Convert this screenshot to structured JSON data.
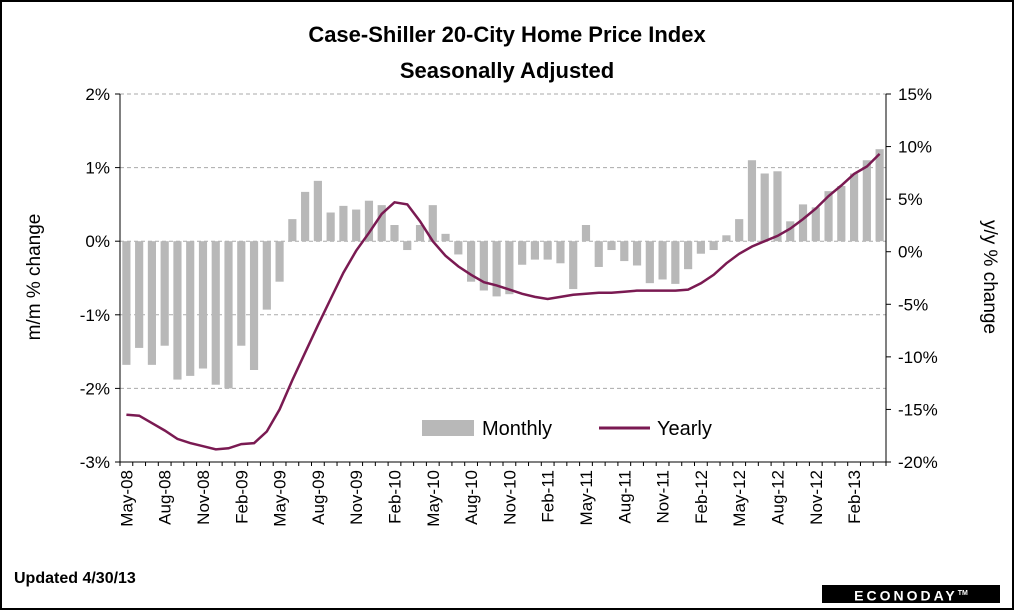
{
  "chart_data": {
    "type": "bar+line",
    "title": "Case-Shiller 20-City Home Price Index",
    "subtitle": "Seasonally Adjusted",
    "ylabel_left": "m/m % change",
    "ylabel_right": "y/y % change",
    "ylim_left": [
      -3,
      2
    ],
    "ylim_right": [
      -20,
      15
    ],
    "yticks_left": [
      "2%",
      "1%",
      "0%",
      "-1%",
      "-2%",
      "-3%"
    ],
    "yticks_right": [
      "15%",
      "10%",
      "5%",
      "0%",
      "-5%",
      "-10%",
      "-15%",
      "-20%"
    ],
    "grid": "horizontal dashed",
    "legend_position": "bottom-center",
    "x_tick_labels": [
      "May-08",
      "Aug-08",
      "Nov-08",
      "Feb-09",
      "May-09",
      "Aug-09",
      "Nov-09",
      "Feb-10",
      "May-10",
      "Aug-10",
      "Nov-10",
      "Feb-11",
      "May-11",
      "Aug-11",
      "Nov-11",
      "Feb-12",
      "May-12",
      "Aug-12",
      "Nov-12",
      "Feb-13"
    ],
    "x_tick_every": 3,
    "series": [
      {
        "name": "Monthly",
        "kind": "bar",
        "color": "#b8b8b8",
        "values": [
          -1.68,
          -1.45,
          -1.68,
          -1.42,
          -1.88,
          -1.83,
          -1.73,
          -1.95,
          -2.0,
          -1.42,
          -1.75,
          -0.93,
          -0.55,
          0.3,
          0.67,
          0.82,
          0.39,
          0.48,
          0.43,
          0.55,
          0.49,
          0.22,
          -0.12,
          0.22,
          0.49,
          0.1,
          -0.18,
          -0.55,
          -0.67,
          -0.75,
          -0.72,
          -0.32,
          -0.25,
          -0.25,
          -0.3,
          -0.65,
          0.22,
          -0.35,
          -0.12,
          -0.27,
          -0.33,
          -0.57,
          -0.52,
          -0.58,
          -0.38,
          -0.17,
          -0.12,
          0.08,
          0.3,
          1.1,
          0.92,
          0.95,
          0.27,
          0.5,
          0.46,
          0.68,
          0.75,
          0.92,
          1.1,
          1.25
        ]
      },
      {
        "name": "Yearly",
        "kind": "line",
        "color": "#7a1a52",
        "values": [
          -15.5,
          -15.6,
          -16.3,
          -17.0,
          -17.8,
          -18.2,
          -18.5,
          -18.8,
          -18.7,
          -18.3,
          -18.2,
          -17.1,
          -15.0,
          -12.2,
          -9.6,
          -7.0,
          -4.5,
          -2.0,
          0.1,
          1.8,
          3.6,
          4.7,
          4.5,
          2.9,
          1.0,
          -0.4,
          -1.4,
          -2.2,
          -2.9,
          -3.2,
          -3.6,
          -4.0,
          -4.3,
          -4.5,
          -4.3,
          -4.1,
          -4.0,
          -3.9,
          -3.9,
          -3.8,
          -3.7,
          -3.7,
          -3.7,
          -3.7,
          -3.6,
          -3.0,
          -2.2,
          -1.1,
          -0.2,
          0.5,
          1.0,
          1.5,
          2.2,
          3.1,
          4.1,
          5.3,
          6.3,
          7.4,
          8.1,
          9.3
        ]
      }
    ]
  },
  "footer": {
    "updated": "Updated 4/30/13",
    "logo_text": "ECONODAY",
    "logo_tm": "TM"
  }
}
